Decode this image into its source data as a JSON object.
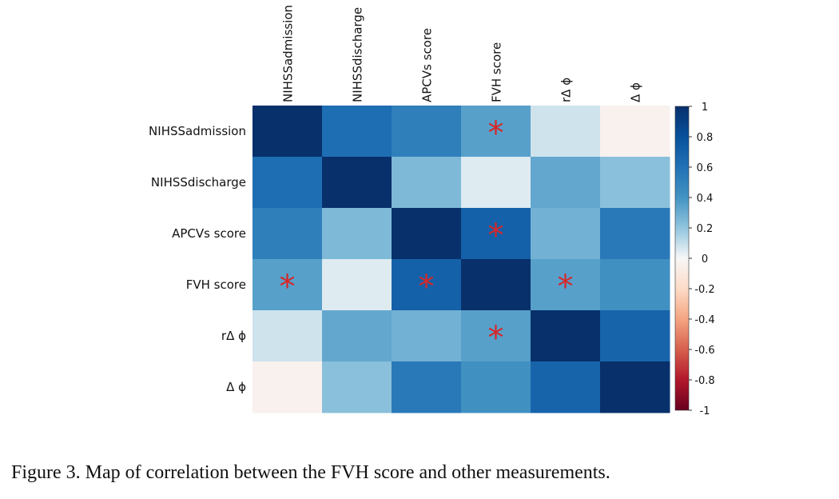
{
  "chart_data": {
    "type": "heatmap",
    "title": "",
    "x_labels": [
      "NIHSSadmission",
      "NIHSSdischarge",
      "APCVs score",
      "FVH score",
      "rΔ ϕ",
      "Δ ϕ"
    ],
    "y_labels": [
      "NIHSSadmission",
      "NIHSSdischarge",
      "APCVs score",
      "FVH score",
      "rΔ ϕ",
      "Δ ϕ"
    ],
    "matrix": [
      [
        1.0,
        0.62,
        0.52,
        0.35,
        0.08,
        -0.04
      ],
      [
        0.62,
        1.0,
        0.25,
        0.05,
        0.32,
        0.22
      ],
      [
        0.52,
        0.25,
        1.0,
        0.7,
        0.28,
        0.55
      ],
      [
        0.35,
        0.05,
        0.7,
        1.0,
        0.35,
        0.42
      ],
      [
        0.08,
        0.32,
        0.28,
        0.35,
        1.0,
        0.68
      ],
      [
        -0.04,
        0.22,
        0.55,
        0.42,
        0.68,
        1.0
      ]
    ],
    "significant": [
      [
        0,
        3
      ],
      [
        2,
        3
      ],
      [
        3,
        0
      ],
      [
        3,
        2
      ],
      [
        3,
        4
      ],
      [
        4,
        3
      ]
    ],
    "significance_marker": "*",
    "colorbar": {
      "min": -1,
      "max": 1,
      "ticks": [
        "1",
        "0.8",
        "0.6",
        "0.4",
        "0.2",
        "0",
        "-0.2",
        "-0.4",
        "-0.6",
        "-0.8",
        "-1"
      ]
    },
    "colors": {
      "high": "#08306b",
      "zero": "#f7f7f7",
      "low": "#67001f",
      "marker": "#d62728"
    }
  },
  "caption": "Figure 3. Map of correlation between the FVH score and other measurements."
}
